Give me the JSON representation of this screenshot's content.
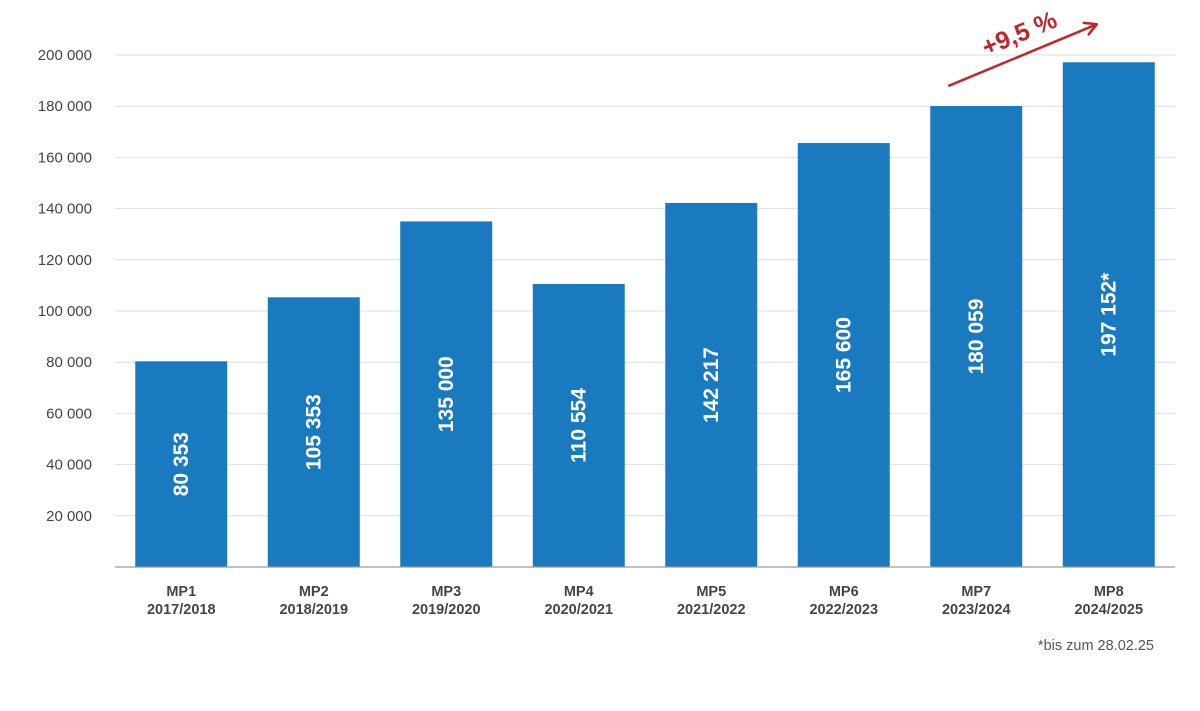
{
  "chart_data": {
    "type": "bar",
    "categories": [
      {
        "code": "MP1",
        "period": "2017/2018"
      },
      {
        "code": "MP2",
        "period": "2018/2019"
      },
      {
        "code": "MP3",
        "period": "2019/2020"
      },
      {
        "code": "MP4",
        "period": "2020/2021"
      },
      {
        "code": "MP5",
        "period": "2021/2022"
      },
      {
        "code": "MP6",
        "period": "2022/2023"
      },
      {
        "code": "MP7",
        "period": "2023/2024"
      },
      {
        "code": "MP8",
        "period": "2024/2025"
      }
    ],
    "values": [
      80353,
      105353,
      135000,
      110554,
      142217,
      165600,
      180059,
      197152
    ],
    "data_labels": [
      "80 353",
      "105 353",
      "135 000",
      "110 554",
      "142 217",
      "165 600",
      "180 059",
      "197 152*"
    ],
    "yticks": [
      {
        "value": 20000,
        "label": "20 000"
      },
      {
        "value": 40000,
        "label": "40 000"
      },
      {
        "value": 60000,
        "label": "60 000"
      },
      {
        "value": 80000,
        "label": "80 000"
      },
      {
        "value": 100000,
        "label": "100 000"
      },
      {
        "value": 120000,
        "label": "120 000"
      },
      {
        "value": 140000,
        "label": "140 000"
      },
      {
        "value": 160000,
        "label": "160 000"
      },
      {
        "value": 180000,
        "label": "180 000"
      },
      {
        "value": 200000,
        "label": "200 000"
      }
    ],
    "ylim": [
      0,
      200000
    ],
    "grid": true,
    "bar_color": "#1a7abf",
    "annotation": {
      "text": "+9,5 %",
      "color": "#c0252c",
      "from_category": "MP7",
      "to_category": "MP8"
    },
    "footnote": "*bis zum 28.02.25"
  }
}
